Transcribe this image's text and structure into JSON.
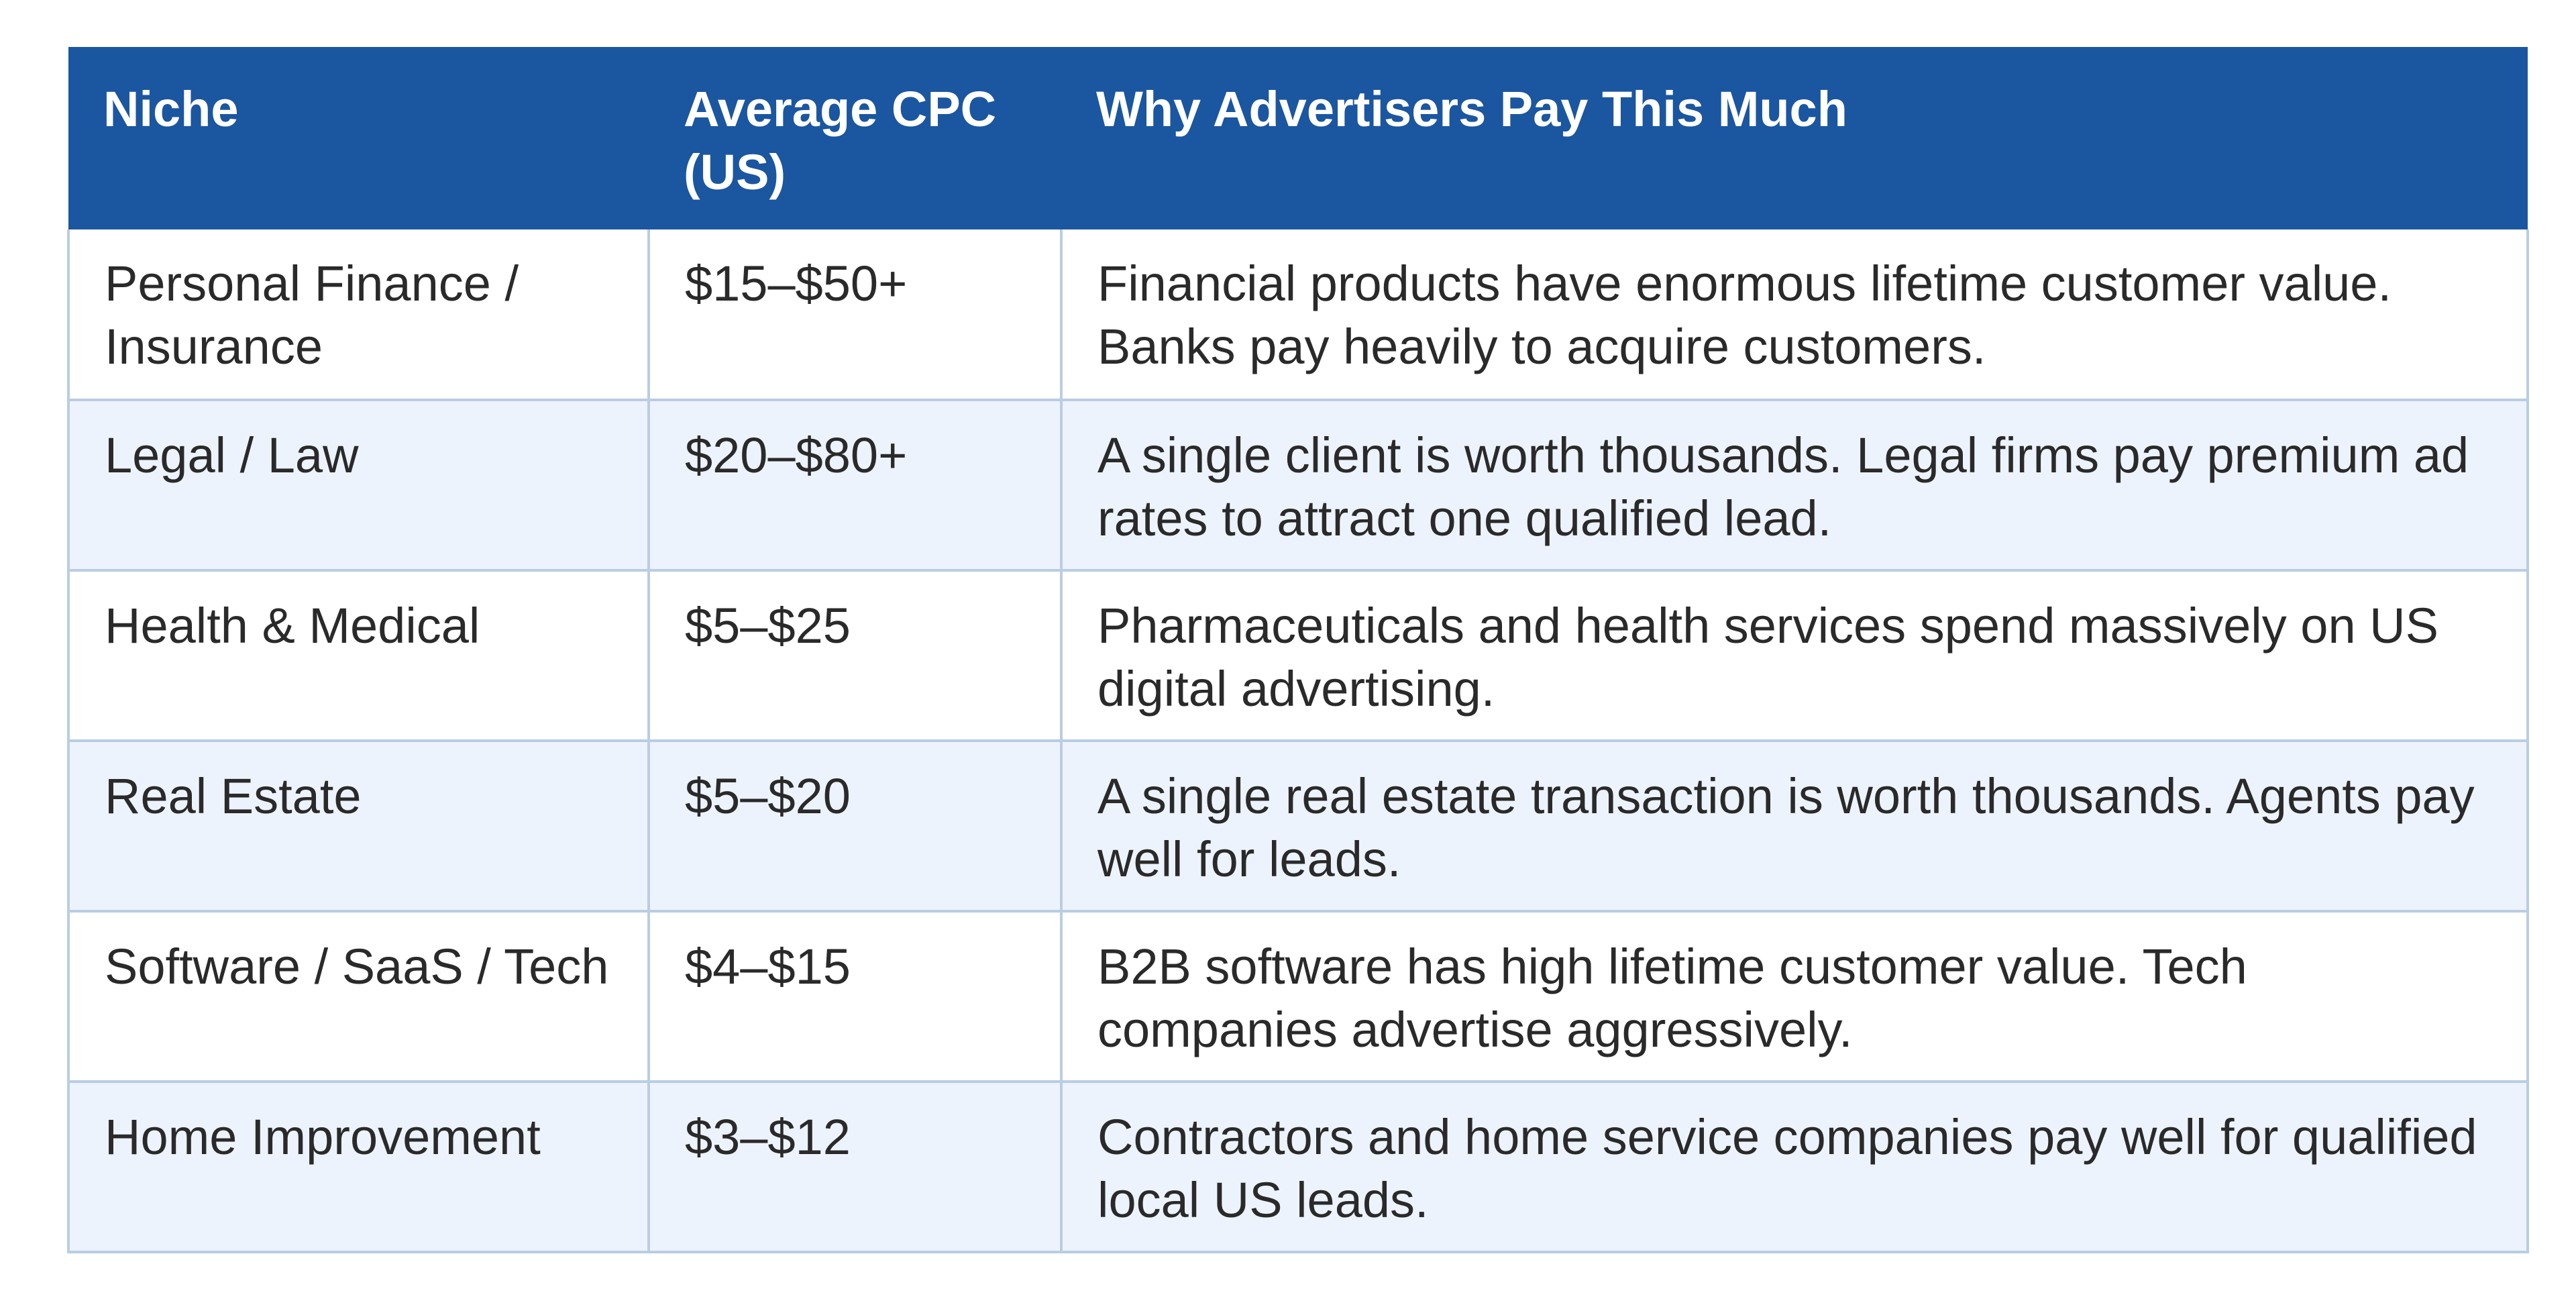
{
  "table": {
    "headers": {
      "niche": "Niche",
      "cpc": "Average CPC (US)",
      "why": "Why Advertisers Pay This Much"
    },
    "rows": [
      {
        "niche": "Personal Finance / Insurance",
        "cpc": "$15–$50+",
        "why": "Financial products have enormous lifetime customer value. Banks pay heavily to acquire customers."
      },
      {
        "niche": "Legal / Law",
        "cpc": "$20–$80+",
        "why": "A single client is worth thousands. Legal firms pay premium ad rates to attract one qualified lead."
      },
      {
        "niche": "Health & Medical",
        "cpc": "$5–$25",
        "why": "Pharmaceuticals and health services spend massively on US digital advertising."
      },
      {
        "niche": "Real Estate",
        "cpc": "$5–$20",
        "why": "A single real estate transaction is worth thousands. Agents pay well for leads."
      },
      {
        "niche": "Software / SaaS / Tech",
        "cpc": "$4–$15",
        "why": "B2B software has high lifetime customer value. Tech companies advertise aggressively."
      },
      {
        "niche": "Home Improvement",
        "cpc": "$3–$12",
        "why": "Contractors and home service companies pay well for qualified local US leads."
      }
    ]
  }
}
